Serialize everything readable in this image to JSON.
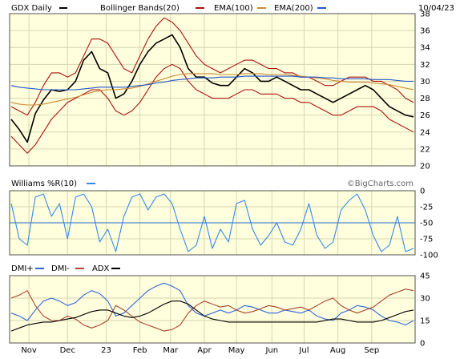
{
  "date": "10/04/23",
  "watermark": "©BigCharts.com",
  "colors": {
    "plot_bg": "#ffffdd",
    "grid": "#d6d6b0",
    "frame": "#505050",
    "price": "#000000",
    "bollinger": "#aa1111",
    "ema100": "#cc8833",
    "ema200": "#2255cc",
    "williams": "#3388ee",
    "dmi_plus": "#3366dd",
    "dmi_minus": "#aa4433",
    "adx": "#000000",
    "hline_blue": "#2266cc"
  },
  "legend": {
    "price": {
      "label": "GDX Daily",
      "color": "#000000"
    },
    "bollinger": {
      "label": "Bollinger Bands(20)",
      "color": "#aa1111"
    },
    "ema100": {
      "label": "EMA(100)",
      "color": "#cc8833"
    },
    "ema200": {
      "label": "EMA(200)",
      "color": "#2255cc"
    },
    "williams": {
      "label": "Williams %R(10)",
      "color": "#3388ee"
    },
    "dmi_plus": {
      "label": "DMI+",
      "color": "#3366dd"
    },
    "dmi_minus": {
      "label": "DMI-",
      "color": "#aa4433"
    },
    "adx": {
      "label": "ADX",
      "color": "#000000"
    }
  },
  "chart_data": [
    {
      "type": "line",
      "panel": "price",
      "title": "GDX Daily",
      "ylim": [
        20,
        38
      ],
      "yticks": [
        20,
        22,
        24,
        26,
        28,
        30,
        32,
        34,
        36,
        38
      ],
      "x": [
        0,
        5,
        10,
        15,
        20,
        25,
        30,
        35,
        40,
        45,
        50,
        55,
        60,
        65,
        70,
        75,
        80,
        85,
        90,
        95,
        100,
        105,
        110,
        115,
        120,
        125,
        130,
        135,
        140,
        145,
        150,
        155,
        160,
        165,
        170,
        175,
        180,
        185,
        190,
        195,
        200,
        205,
        210,
        215,
        220,
        225,
        230,
        235,
        240,
        245,
        250
      ],
      "xticks": [
        {
          "label": "Nov",
          "x": 11
        },
        {
          "label": "Dec",
          "x": 35
        },
        {
          "label": "23",
          "x": 59
        },
        {
          "label": "Feb",
          "x": 80
        },
        {
          "label": "Mar",
          "x": 99
        },
        {
          "label": "Apr",
          "x": 120
        },
        {
          "label": "May",
          "x": 140
        },
        {
          "label": "Jun",
          "x": 162
        },
        {
          "label": "Jul",
          "x": 182
        },
        {
          "label": "Aug",
          "x": 203
        },
        {
          "label": "Sep",
          "x": 224
        }
      ],
      "series": [
        {
          "name": "GDX Daily",
          "values": [
            25.5,
            24.3,
            22.8,
            26.2,
            27.8,
            29.0,
            28.8,
            29.0,
            30.0,
            32.5,
            33.5,
            31.5,
            31.0,
            28.0,
            28.5,
            30.0,
            32.0,
            33.5,
            34.5,
            35.0,
            35.5,
            34.0,
            31.5,
            30.5,
            30.5,
            29.8,
            29.5,
            29.5,
            30.5,
            31.5,
            31.0,
            30.0,
            30.0,
            30.5,
            30.0,
            29.5,
            29.0,
            29.0,
            28.5,
            28.0,
            27.5,
            28.0,
            28.5,
            29.0,
            29.5,
            29.0,
            28.0,
            27.0,
            26.5,
            26.0,
            25.8
          ]
        },
        {
          "name": "Bollinger Bands(20)",
          "values": [
            27.0,
            26.5,
            26.0,
            27.5,
            29.5,
            31.0,
            31.0,
            30.5,
            31.0,
            33.0,
            35.0,
            35.0,
            34.5,
            33.0,
            31.5,
            31.0,
            33.0,
            35.0,
            36.5,
            37.5,
            37.0,
            36.0,
            34.5,
            33.0,
            32.0,
            31.5,
            31.0,
            31.5,
            32.0,
            32.5,
            32.5,
            32.0,
            31.5,
            31.5,
            31.0,
            31.0,
            30.5,
            30.5,
            30.0,
            29.5,
            29.5,
            30.0,
            30.5,
            30.5,
            30.5,
            30.0,
            30.0,
            29.5,
            29.0,
            28.0,
            27.5
          ]
        },
        {
          "name": "Bollinger Bands(20)",
          "values": [
            23.5,
            22.5,
            21.5,
            22.5,
            24.0,
            25.5,
            26.5,
            27.5,
            28.0,
            28.5,
            29.0,
            29.0,
            28.0,
            26.5,
            26.0,
            26.5,
            27.5,
            29.0,
            30.5,
            31.5,
            32.0,
            31.5,
            30.0,
            29.0,
            28.5,
            28.0,
            28.0,
            28.0,
            28.5,
            29.0,
            29.0,
            28.5,
            28.5,
            28.5,
            28.0,
            28.0,
            27.5,
            27.5,
            27.0,
            26.5,
            26.0,
            26.0,
            26.5,
            27.0,
            27.0,
            27.0,
            26.5,
            25.5,
            25.0,
            24.5,
            24.0
          ]
        },
        {
          "name": "EMA(100)",
          "values": [
            27.5,
            27.3,
            27.2,
            27.2,
            27.3,
            27.5,
            27.7,
            27.9,
            28.1,
            28.4,
            28.7,
            28.9,
            29.0,
            29.0,
            29.1,
            29.2,
            29.4,
            29.7,
            30.0,
            30.3,
            30.6,
            30.8,
            30.9,
            30.9,
            30.9,
            30.9,
            30.8,
            30.8,
            30.8,
            30.9,
            30.9,
            30.9,
            30.8,
            30.8,
            30.8,
            30.7,
            30.6,
            30.5,
            30.4,
            30.3,
            30.1,
            30.0,
            29.9,
            29.9,
            29.9,
            29.8,
            29.7,
            29.6,
            29.4,
            29.2,
            29.0
          ]
        },
        {
          "name": "EMA(200)",
          "values": [
            29.5,
            29.3,
            29.2,
            29.1,
            29.0,
            29.0,
            29.0,
            29.0,
            29.0,
            29.1,
            29.2,
            29.3,
            29.3,
            29.3,
            29.3,
            29.4,
            29.5,
            29.6,
            29.8,
            29.9,
            30.1,
            30.2,
            30.3,
            30.4,
            30.4,
            30.4,
            30.5,
            30.5,
            30.5,
            30.6,
            30.6,
            30.6,
            30.6,
            30.6,
            30.6,
            30.6,
            30.5,
            30.5,
            30.5,
            30.4,
            30.4,
            30.3,
            30.3,
            30.3,
            30.3,
            30.2,
            30.2,
            30.2,
            30.1,
            30.0,
            30.0
          ]
        }
      ]
    },
    {
      "type": "line",
      "panel": "williams",
      "title": "Williams %R(10)",
      "ylim": [
        -100,
        0
      ],
      "yticks": [
        0,
        -25,
        -50,
        -75,
        -100
      ],
      "reference_line": -50,
      "x": [
        0,
        5,
        10,
        15,
        20,
        25,
        30,
        35,
        40,
        45,
        50,
        55,
        60,
        65,
        70,
        75,
        80,
        85,
        90,
        95,
        100,
        105,
        110,
        115,
        120,
        125,
        130,
        135,
        140,
        145,
        150,
        155,
        160,
        165,
        170,
        175,
        180,
        185,
        190,
        195,
        200,
        205,
        210,
        215,
        220,
        225,
        230,
        235,
        240,
        245,
        250
      ],
      "series": [
        {
          "name": "Williams %R(10)",
          "values": [
            -20,
            -75,
            -85,
            -10,
            -5,
            -40,
            -20,
            -75,
            -10,
            -5,
            -25,
            -80,
            -60,
            -95,
            -40,
            -10,
            -5,
            -30,
            -10,
            -5,
            -20,
            -60,
            -95,
            -85,
            -40,
            -90,
            -60,
            -80,
            -20,
            -15,
            -60,
            -85,
            -70,
            -50,
            -80,
            -85,
            -60,
            -20,
            -70,
            -90,
            -80,
            -30,
            -15,
            -5,
            -30,
            -70,
            -95,
            -85,
            -40,
            -95,
            -90
          ]
        }
      ]
    },
    {
      "type": "line",
      "panel": "dmi",
      "ylim": [
        0,
        45
      ],
      "yticks": [
        0,
        15,
        30,
        45
      ],
      "x": [
        0,
        5,
        10,
        15,
        20,
        25,
        30,
        35,
        40,
        45,
        50,
        55,
        60,
        65,
        70,
        75,
        80,
        85,
        90,
        95,
        100,
        105,
        110,
        115,
        120,
        125,
        130,
        135,
        140,
        145,
        150,
        155,
        160,
        165,
        170,
        175,
        180,
        185,
        190,
        195,
        200,
        205,
        210,
        215,
        220,
        225,
        230,
        235,
        240,
        245,
        250
      ],
      "series": [
        {
          "name": "DMI+",
          "values": [
            20,
            18,
            15,
            22,
            28,
            30,
            28,
            25,
            27,
            32,
            35,
            33,
            28,
            18,
            20,
            25,
            30,
            35,
            38,
            40,
            38,
            35,
            25,
            20,
            18,
            20,
            22,
            20,
            22,
            25,
            24,
            22,
            20,
            20,
            22,
            21,
            20,
            22,
            18,
            16,
            15,
            20,
            22,
            25,
            24,
            22,
            18,
            15,
            14,
            12,
            15
          ]
        },
        {
          "name": "DMI-",
          "values": [
            30,
            32,
            35,
            25,
            18,
            15,
            15,
            18,
            16,
            12,
            10,
            12,
            15,
            25,
            22,
            18,
            14,
            12,
            10,
            8,
            9,
            12,
            20,
            25,
            28,
            26,
            24,
            25,
            22,
            20,
            21,
            23,
            25,
            24,
            22,
            23,
            24,
            22,
            25,
            28,
            30,
            25,
            22,
            20,
            22,
            24,
            28,
            32,
            34,
            36,
            35
          ]
        },
        {
          "name": "ADX",
          "values": [
            8,
            10,
            12,
            13,
            14,
            14,
            15,
            16,
            17,
            19,
            21,
            22,
            22,
            20,
            18,
            17,
            18,
            20,
            23,
            26,
            28,
            28,
            26,
            22,
            18,
            16,
            15,
            14,
            14,
            14,
            14,
            14,
            14,
            14,
            14,
            14,
            14,
            14,
            14,
            15,
            16,
            16,
            15,
            14,
            14,
            14,
            15,
            17,
            19,
            21,
            22
          ]
        }
      ]
    }
  ]
}
